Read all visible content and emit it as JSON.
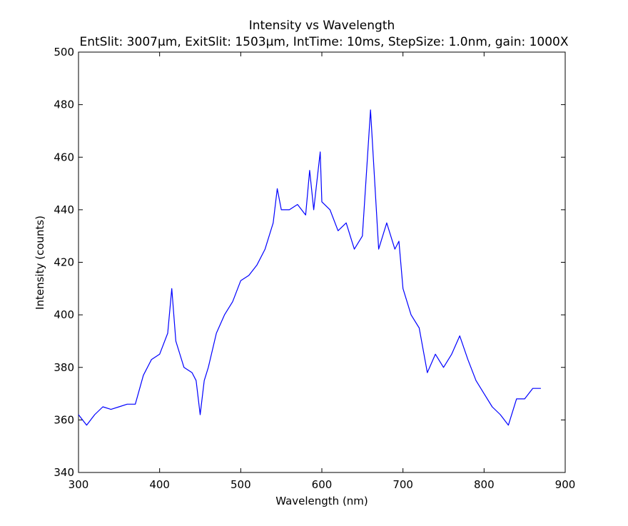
{
  "chart_data": {
    "type": "line",
    "title": "Intensity vs Wavelength",
    "subtitle": "EntSlit: 3007μm, ExitSlit: 1503μm, IntTime: 10ms, StepSize: 1.0nm, gain: 1000X",
    "xlabel": "Wavelength (nm)",
    "ylabel": "Intensity (counts)",
    "xlim": [
      300,
      900
    ],
    "ylim": [
      340,
      500
    ],
    "xticks": [
      300,
      400,
      500,
      600,
      700,
      800,
      900
    ],
    "yticks": [
      340,
      360,
      380,
      400,
      420,
      440,
      460,
      480,
      500
    ],
    "grid": false,
    "series_color": "#0000ff",
    "x": [
      300,
      310,
      320,
      330,
      340,
      350,
      360,
      370,
      380,
      390,
      400,
      410,
      415,
      420,
      430,
      440,
      445,
      450,
      455,
      460,
      470,
      480,
      490,
      500,
      510,
      520,
      530,
      540,
      545,
      550,
      560,
      570,
      580,
      585,
      590,
      598,
      600,
      610,
      620,
      630,
      640,
      650,
      660,
      670,
      680,
      690,
      695,
      700,
      710,
      720,
      730,
      740,
      750,
      760,
      770,
      780,
      790,
      800,
      810,
      820,
      830,
      840,
      850,
      860,
      870
    ],
    "y": [
      362,
      358,
      362,
      365,
      364,
      365,
      366,
      366,
      377,
      383,
      385,
      393,
      410,
      390,
      380,
      378,
      375,
      362,
      375,
      380,
      393,
      400,
      405,
      413,
      415,
      419,
      425,
      435,
      448,
      440,
      440,
      442,
      438,
      455,
      440,
      462,
      443,
      440,
      432,
      435,
      425,
      430,
      478,
      425,
      435,
      425,
      428,
      410,
      400,
      395,
      378,
      385,
      380,
      385,
      392,
      383,
      375,
      370,
      365,
      362,
      358,
      368,
      368,
      372,
      372
    ],
    "annotations": []
  }
}
